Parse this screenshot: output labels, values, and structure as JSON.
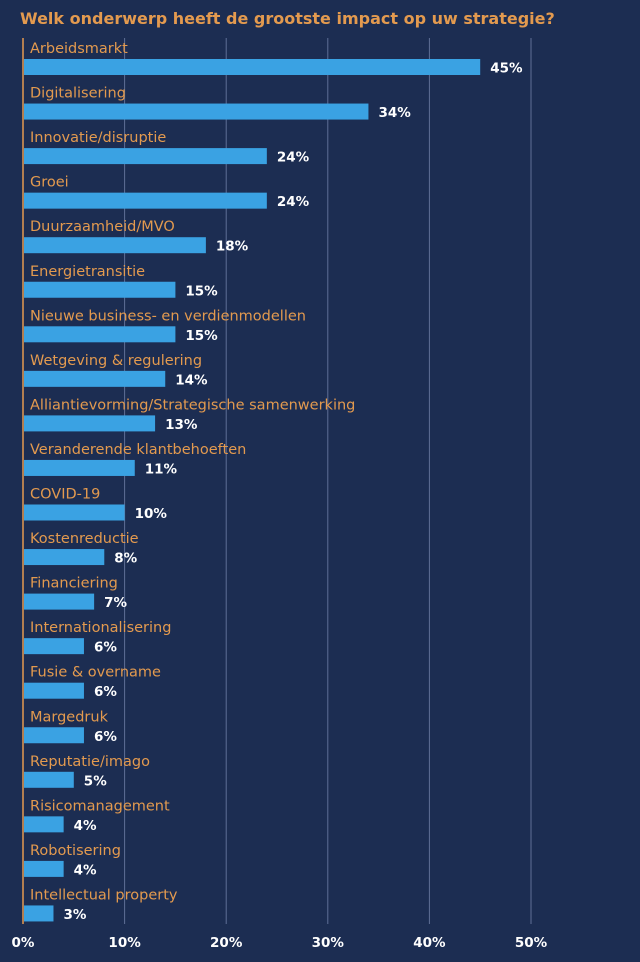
{
  "chart_data": {
    "type": "bar",
    "orientation": "horizontal",
    "title": "Welk onderwerp heeft de grootste impact op uw strategie?",
    "xlabel": "",
    "ylabel": "",
    "xlim": [
      0,
      50
    ],
    "x_ticks": [
      "0%",
      "10%",
      "20%",
      "30%",
      "40%",
      "50%"
    ],
    "grid": true,
    "value_suffix": "%",
    "categories": [
      "Arbeidsmarkt",
      "Digitalisering",
      "Innovatie/disruptie",
      "Groei",
      "Duurzaamheid/MVO",
      "Energietransitie",
      "Nieuwe business- en verdienmodellen",
      "Wetgeving & regulering",
      "Alliantievorming/Strategische samenwerking",
      "Veranderende klantbehoeften",
      "COVID-19",
      "Kostenreductie",
      "Financiering",
      "Internationalisering",
      "Fusie & overname",
      "Margedruk",
      "Reputatie/imago",
      "Risicomanagement",
      "Robotisering",
      "Intellectual property"
    ],
    "values": [
      45,
      34,
      24,
      24,
      18,
      15,
      15,
      14,
      13,
      11,
      10,
      8,
      7,
      6,
      6,
      6,
      5,
      4,
      4,
      3
    ],
    "value_labels": [
      "45%",
      "34%",
      "24%",
      "24%",
      "18%",
      "15%",
      "15%",
      "14%",
      "13%",
      "11%",
      "10%",
      "8%",
      "7%",
      "6%",
      "6%",
      "6%",
      "5%",
      "4%",
      "4%",
      "3%"
    ]
  },
  "colors": {
    "background": "#1c2d52",
    "bar": "#3aa2e3",
    "category_text": "#e39a4f",
    "title_text": "#e39a4f",
    "value_text": "#ffffff",
    "tick_text": "#ffffff",
    "gridline": "#5f6f96",
    "axis_line": "#e39a4f"
  }
}
